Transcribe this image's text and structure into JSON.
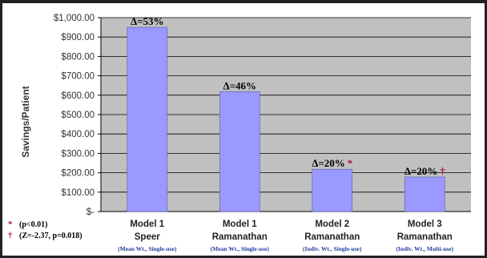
{
  "chart_data": {
    "type": "bar",
    "ylabel": "Savings/Patient",
    "ylim": [
      0,
      1000
    ],
    "yticks": [
      "$-",
      "$100.00",
      "$200.00",
      "$300.00",
      "$400.00",
      "$500.00",
      "$600.00",
      "$700.00",
      "$800.00",
      "$900.00",
      "$1,000.00"
    ],
    "grid": true,
    "bar_color": "#9999ff",
    "plot_bg": "#c0c0c0",
    "categories": [
      {
        "line1": "Model 1",
        "line2": "Speer",
        "line3": "(Mean Wt., Single-use)"
      },
      {
        "line1": "Model 1",
        "line2": "Ramanathan",
        "line3": "(Mean Wt., Single-use)"
      },
      {
        "line1": "Model 2",
        "line2": "Ramanathan",
        "line3": "(Indiv. Wt., Single-use)"
      },
      {
        "line1": "Model 3",
        "line2": "Ramanathan",
        "line3": "(Indiv. Wt., Multi-use)"
      }
    ],
    "values": [
      950,
      618,
      218,
      178
    ],
    "annotations": [
      {
        "text": "Δ=53%",
        "mark": ""
      },
      {
        "text": "Δ=46%",
        "mark": ""
      },
      {
        "text": "Δ=20%",
        "mark": "*"
      },
      {
        "text": "Δ=20%",
        "mark": "†"
      }
    ],
    "footnotes": [
      {
        "symbol": "*",
        "text": "(p<0.01)"
      },
      {
        "symbol": "†",
        "text": "(Z=-2.37, p=0.018)"
      }
    ]
  }
}
